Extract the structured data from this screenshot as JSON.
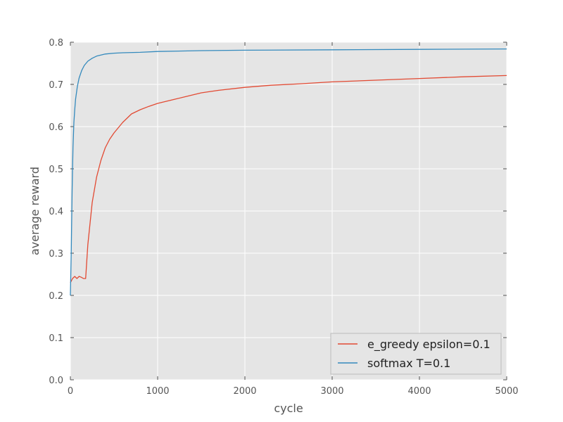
{
  "chart_data": {
    "type": "line",
    "title": "",
    "xlabel": "cycle",
    "ylabel": "average reward",
    "xlim": [
      0,
      5000
    ],
    "ylim": [
      0,
      0.8
    ],
    "xticks": [
      0,
      1000,
      2000,
      3000,
      4000,
      5000
    ],
    "yticks": [
      0.0,
      0.1,
      0.2,
      0.3,
      0.4,
      0.5,
      0.6,
      0.7,
      0.8
    ],
    "xtick_labels": [
      "0",
      "1000",
      "2000",
      "3000",
      "4000",
      "5000"
    ],
    "ytick_labels": [
      "0.0",
      "0.1",
      "0.2",
      "0.3",
      "0.4",
      "0.5",
      "0.6",
      "0.7",
      "0.8"
    ],
    "grid": true,
    "legend_position": "bottom-right",
    "series": [
      {
        "name": "e_greedy epsilon=0.1",
        "color": "#e24a33",
        "x": [
          0,
          25,
          50,
          75,
          100,
          125,
          150,
          175,
          200,
          250,
          300,
          350,
          400,
          450,
          500,
          600,
          700,
          800,
          900,
          1000,
          1100,
          1200,
          1300,
          1400,
          1500,
          1700,
          2000,
          2300,
          2600,
          3000,
          3500,
          4000,
          4500,
          5000
        ],
        "values": [
          0.23,
          0.24,
          0.245,
          0.24,
          0.245,
          0.243,
          0.24,
          0.24,
          0.32,
          0.42,
          0.48,
          0.52,
          0.55,
          0.57,
          0.585,
          0.61,
          0.63,
          0.64,
          0.648,
          0.655,
          0.66,
          0.665,
          0.67,
          0.675,
          0.68,
          0.686,
          0.693,
          0.698,
          0.701,
          0.706,
          0.71,
          0.714,
          0.718,
          0.721
        ]
      },
      {
        "name": "softmax T=0.1",
        "color": "#348abd",
        "x": [
          0,
          10,
          20,
          30,
          40,
          50,
          60,
          80,
          100,
          130,
          160,
          200,
          250,
          300,
          400,
          500,
          600,
          800,
          1000,
          1500,
          2000,
          3000,
          4000,
          5000
        ],
        "values": [
          0.2,
          0.3,
          0.45,
          0.55,
          0.61,
          0.64,
          0.665,
          0.695,
          0.715,
          0.733,
          0.745,
          0.755,
          0.762,
          0.767,
          0.772,
          0.774,
          0.775,
          0.776,
          0.778,
          0.78,
          0.781,
          0.782,
          0.783,
          0.784
        ]
      }
    ]
  }
}
